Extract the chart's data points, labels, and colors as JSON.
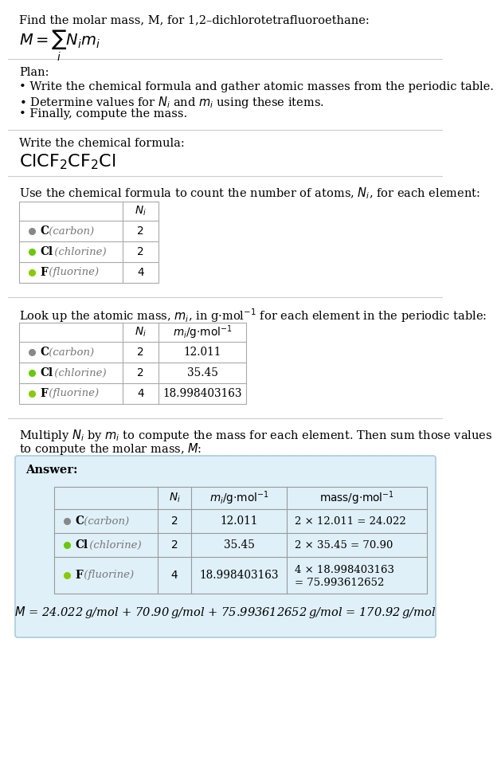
{
  "bg_color": "#ffffff",
  "answer_bg": "#dff0f8",
  "answer_border": "#aaccdd",
  "sep_color": "#cccccc",
  "text_color": "#000000",
  "gray_color": "#777777",
  "table_border": "#aaaaaa",
  "title_line": "Find the molar mass, M, for 1,2–dichlorotetrafluoroethane:",
  "plan_header": "Plan:",
  "plan_items": [
    "• Write the chemical formula and gather atomic masses from the periodic table.",
    "• Determine values for $N_i$ and $m_i$ using these items.",
    "• Finally, compute the mass."
  ],
  "formula_header": "Write the chemical formula:",
  "count_header": "Use the chemical formula to count the number of atoms, $N_i$, for each element:",
  "lookup_header": "Look up the atomic mass, $m_i$, in g·mol$^{-1}$ for each element in the periodic table:",
  "mult_header": "Multiply $N_i$ by $m_i$ to compute the mass for each element. Then sum those values\nto compute the molar mass, $M$:",
  "answer_label": "Answer:",
  "elements": [
    "C (carbon)",
    "Cl (chlorine)",
    "F (fluorine)"
  ],
  "element_symbols": [
    "C",
    "Cl",
    "F"
  ],
  "element_colors": [
    "#888888",
    "#66cc00",
    "#88cc00"
  ],
  "Ni": [
    "2",
    "2",
    "4"
  ],
  "mi": [
    "12.011",
    "35.45",
    "18.998403163"
  ],
  "mass_line1": [
    "2 × 12.011 = 24.022",
    "2 × 35.45 = 70.90",
    "4 × 18.998403163"
  ],
  "mass_line2": [
    "",
    "",
    "= 75.993612652"
  ],
  "final_eq": "$M$ = 24.022 g/mol + 70.90 g/mol + 75.993612652 g/mol = 170.92 g/mol",
  "font_size": 10.5,
  "font_small": 9.8
}
